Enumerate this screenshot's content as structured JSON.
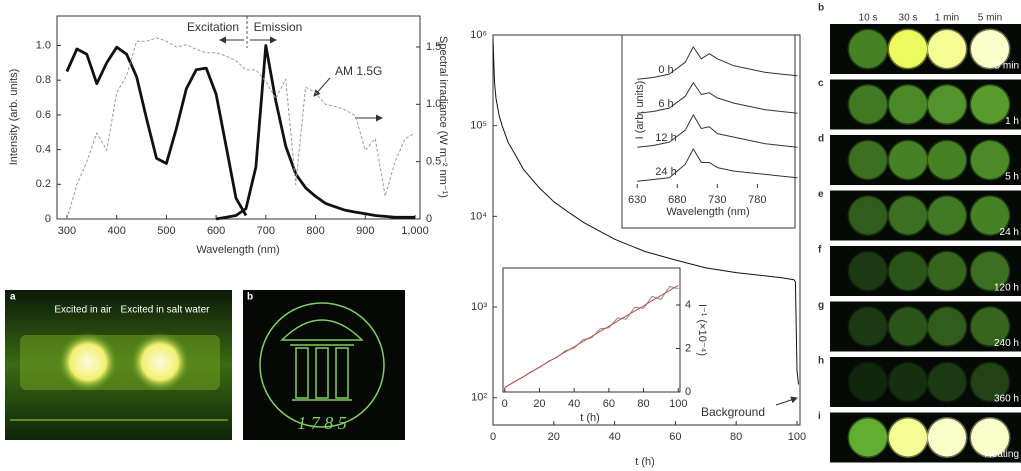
{
  "chart_data": [
    {
      "type": "line",
      "xlabel": "Wavelength (nm)",
      "ylabel": "Intensity (arb. units)",
      "y2label": "Spectral irradiance (W m⁻² nm⁻¹)",
      "x": [
        300,
        320,
        340,
        360,
        380,
        400,
        420,
        440,
        460,
        480,
        500,
        520,
        540,
        560,
        580,
        600,
        620,
        640,
        660,
        680,
        700,
        720,
        740,
        760,
        780,
        800,
        820,
        840,
        860,
        880,
        900,
        920,
        940,
        960,
        980,
        1000
      ],
      "series": [
        {
          "color": "#111111",
          "values": [
            0.85,
            0.98,
            0.95,
            0.78,
            0.9,
            0.99,
            0.95,
            0.82,
            0.58,
            0.35,
            0.32,
            0.52,
            0.75,
            0.86,
            0.87,
            0.72,
            0.42,
            0.12,
            0.02,
            null,
            null,
            null,
            null,
            null,
            null,
            null,
            null,
            null,
            null,
            null,
            null,
            null,
            null,
            null,
            null,
            null
          ]
        },
        {
          "color": "#111111",
          "values": [
            null,
            null,
            null,
            null,
            null,
            null,
            null,
            null,
            null,
            null,
            null,
            null,
            null,
            null,
            null,
            0,
            0.01,
            0.02,
            0.06,
            0.3,
            1.0,
            0.68,
            0.42,
            0.26,
            0.18,
            0.13,
            0.09,
            0.07,
            0.05,
            0.04,
            0.03,
            0.02,
            0.015,
            0.01,
            0.01,
            0.01
          ]
        },
        {
          "color": "#999999",
          "linestyle": "dashed",
          "axis": "y2",
          "values": [
            0,
            0.3,
            0.5,
            0.75,
            0.6,
            1.1,
            1.25,
            1.55,
            1.55,
            1.58,
            1.55,
            1.5,
            1.52,
            1.48,
            1.45,
            1.45,
            1.42,
            1.38,
            1.3,
            1.3,
            1.2,
            1.05,
            1.22,
            0.3,
            1.15,
            1.1,
            1.0,
            0.98,
            0.95,
            0.9,
            0.6,
            0.7,
            0.2,
            0.5,
            0.7,
            0.75
          ]
        }
      ],
      "xlim": [
        280,
        1010
      ],
      "xticks": [
        300,
        400,
        500,
        600,
        700,
        800,
        900,
        {
          "value": 1000,
          "label": "1,000"
        }
      ],
      "ylim": [
        0,
        1.17
      ],
      "yticks": [
        0,
        0.2,
        0.4,
        0.6,
        0.8,
        {
          "value": 1,
          "label": "1.0"
        }
      ],
      "y2lim": [
        0,
        1.77
      ],
      "y2ticks": [
        0,
        0.5,
        {
          "value": 1,
          "label": "1.0"
        },
        1.5
      ],
      "annotations": [
        "Excitation",
        "Emission",
        "AM 1.5G"
      ]
    },
    {
      "type": "line",
      "xlabel": "t (h)",
      "log_y": true,
      "x": [
        0,
        0.5,
        1,
        2,
        3,
        5,
        7,
        10,
        15,
        20,
        25,
        30,
        40,
        50,
        60,
        70,
        80,
        90,
        95,
        99,
        99.5,
        100,
        100.5
      ],
      "series": [
        {
          "color": "#111111",
          "values": [
            900000,
            300000,
            200000,
            130000,
            100000,
            65000,
            50000,
            33000,
            21000,
            14500,
            11000,
            8500,
            5600,
            4100,
            3300,
            2700,
            2400,
            2200,
            2100,
            2000,
            1900,
            200,
            140
          ]
        }
      ],
      "xlim": [
        0,
        101
      ],
      "xticks": [
        0,
        20,
        40,
        60,
        80,
        100
      ],
      "ylim": [
        50,
        1000000
      ],
      "yticks": [
        {
          "value": 100,
          "label": "10²"
        },
        {
          "value": 1000,
          "label": "10³"
        },
        {
          "value": 10000,
          "label": "10⁴"
        },
        {
          "value": 100000,
          "label": "10⁵"
        },
        {
          "value": 1000000,
          "label": "10⁶"
        }
      ],
      "annotations": [
        "Background"
      ]
    },
    {
      "type": "line",
      "xlabel": "Wavelength (nm)",
      "ylabel": "I (arb. units)",
      "x": [
        630,
        650,
        670,
        690,
        700,
        710,
        720,
        730,
        750,
        770,
        790,
        810,
        830
      ],
      "series": [
        {
          "name": "0 h",
          "color": "#333333",
          "values": [
            3.0,
            3.05,
            3.15,
            3.5,
            3.95,
            3.6,
            3.75,
            3.6,
            3.4,
            3.3,
            3.2,
            3.15,
            3.1
          ]
        },
        {
          "name": "6 h",
          "color": "#333333",
          "values": [
            2.0,
            2.05,
            2.15,
            2.5,
            2.9,
            2.55,
            2.6,
            2.45,
            2.3,
            2.2,
            2.1,
            2.05,
            2.0
          ]
        },
        {
          "name": "12 h",
          "color": "#333333",
          "values": [
            1.0,
            1.05,
            1.15,
            1.5,
            1.95,
            1.55,
            1.6,
            1.4,
            1.3,
            1.2,
            1.1,
            1.05,
            1.0
          ]
        },
        {
          "name": "24 h",
          "color": "#333333",
          "values": [
            0.0,
            0.05,
            0.1,
            0.5,
            0.95,
            0.55,
            0.55,
            0.4,
            0.3,
            0.25,
            0.2,
            0.15,
            0.1
          ]
        }
      ],
      "xlim": [
        611,
        827
      ],
      "xticks": [
        630,
        680,
        730,
        780
      ],
      "ylim": [
        -0.2,
        4.3
      ]
    },
    {
      "type": "line",
      "xlabel": "t (h)",
      "ylabel": "I⁻¹ (×10⁻⁴)",
      "y_axis_side": "right",
      "x": [
        0,
        5,
        10,
        15,
        20,
        25,
        30,
        35,
        40,
        45,
        50,
        55,
        60,
        65,
        70,
        75,
        80,
        85,
        90,
        95,
        100
      ],
      "series": [
        {
          "color": "#888888",
          "values": [
            0.2,
            0.45,
            0.66,
            0.93,
            1.12,
            1.4,
            1.58,
            1.9,
            2.02,
            2.4,
            2.48,
            2.9,
            2.95,
            3.4,
            3.35,
            3.9,
            3.85,
            4.4,
            4.25,
            4.85,
            4.75
          ]
        },
        {
          "color": "#c0504d",
          "values": [
            0.2,
            0.44,
            0.67,
            0.91,
            1.14,
            1.38,
            1.61,
            1.85,
            2.08,
            2.32,
            2.55,
            2.79,
            3.02,
            3.26,
            3.49,
            3.73,
            3.96,
            4.2,
            4.43,
            4.67,
            4.9
          ]
        }
      ],
      "xlim": [
        -1,
        101
      ],
      "xticks": [
        0,
        20,
        40,
        60,
        80,
        100
      ],
      "ylim": [
        0,
        5.7
      ],
      "yticks": [
        0,
        2,
        4
      ]
    }
  ],
  "panels": {
    "a": {
      "label": "a",
      "captions": [
        "Excited in air",
        "Excited in salt water"
      ]
    },
    "b": {
      "label": "b",
      "text": "1 7 8 5"
    },
    "series": {
      "label": "b",
      "columns": [
        "10 s",
        "30 s",
        "1 min",
        "5 min"
      ],
      "rows": [
        {
          "label": null,
          "time": "5 min"
        },
        {
          "label": "c",
          "time": "1 h"
        },
        {
          "label": "d",
          "time": "5 h"
        },
        {
          "label": "e",
          "time": "24 h"
        },
        {
          "label": "f",
          "time": "120 h"
        },
        {
          "label": "g",
          "time": "240 h"
        },
        {
          "label": "h",
          "time": "360 h"
        },
        {
          "label": "i",
          "time": "Heating"
        }
      ]
    }
  }
}
